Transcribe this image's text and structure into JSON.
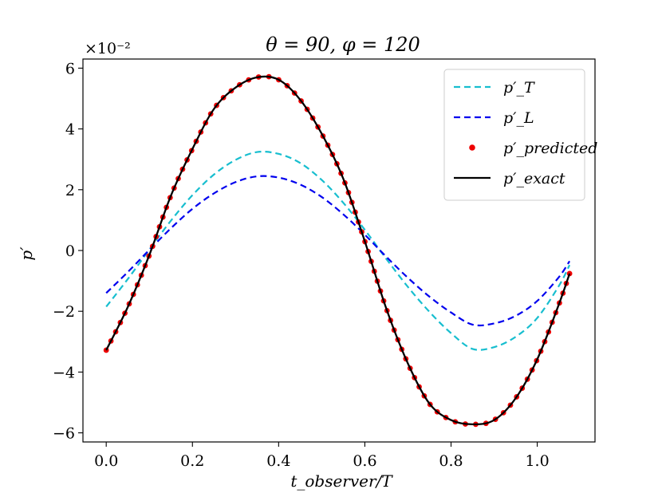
{
  "chart_data": {
    "type": "line",
    "title": "θ = 90, φ = 120",
    "xlabel": "t_observer/T",
    "ylabel": "p′",
    "xlim": [
      -0.054,
      1.134
    ],
    "ylim": [
      -6.3,
      6.3
    ],
    "y_scale_label": "×10⁻²",
    "x_ticks": [
      0.0,
      0.2,
      0.4,
      0.6,
      0.8,
      1.0
    ],
    "x_tick_labels": [
      "0.0",
      "0.2",
      "0.4",
      "0.6",
      "0.8",
      "1.0"
    ],
    "y_ticks": [
      -6,
      -4,
      -2,
      0,
      2,
      4,
      6
    ],
    "y_tick_labels": [
      "−6",
      "−4",
      "−2",
      "0",
      "2",
      "4",
      "6"
    ],
    "legend_position": "top-right",
    "series": [
      {
        "name": "p′_T",
        "legend_label": "p′_T",
        "style": "dashed",
        "color": "#17becf",
        "x": [
          0.0,
          0.05,
          0.1,
          0.15,
          0.2,
          0.25,
          0.3,
          0.35,
          0.4,
          0.45,
          0.5,
          0.55,
          0.6,
          0.65,
          0.7,
          0.75,
          0.8,
          0.85,
          0.9,
          0.95,
          1.0,
          1.05,
          1.075
        ],
        "values": [
          -1.85,
          -0.94,
          0.03,
          0.98,
          1.82,
          2.5,
          2.98,
          3.24,
          3.18,
          2.88,
          2.32,
          1.57,
          0.68,
          -0.28,
          -1.2,
          -2.02,
          -2.72,
          -3.24,
          -3.18,
          -2.84,
          -2.22,
          -1.17,
          -0.48
        ]
      },
      {
        "name": "p′_L",
        "legend_label": "p′_L",
        "style": "dashed",
        "color": "#0000ee",
        "x": [
          0.0,
          0.05,
          0.1,
          0.15,
          0.2,
          0.25,
          0.3,
          0.35,
          0.4,
          0.45,
          0.5,
          0.55,
          0.6,
          0.65,
          0.7,
          0.75,
          0.8,
          0.85,
          0.9,
          0.95,
          1.0,
          1.05,
          1.075
        ],
        "values": [
          -1.4,
          -0.71,
          0.02,
          0.73,
          1.37,
          1.88,
          2.25,
          2.44,
          2.4,
          2.17,
          1.76,
          1.19,
          0.52,
          -0.21,
          -0.9,
          -1.52,
          -2.04,
          -2.44,
          -2.4,
          -2.15,
          -1.66,
          -0.88,
          -0.35
        ]
      },
      {
        "name": "p′_predicted",
        "legend_label": "p′_predicted",
        "style": "dots",
        "color": "#ee0000",
        "x": [
          0.0,
          0.05,
          0.1,
          0.15,
          0.2,
          0.25,
          0.3,
          0.35,
          0.4,
          0.45,
          0.5,
          0.55,
          0.6,
          0.65,
          0.7,
          0.75,
          0.8,
          0.85,
          0.9,
          0.95,
          1.0,
          1.05,
          1.075
        ],
        "values": [
          -3.28,
          -1.86,
          -0.15,
          1.8,
          3.34,
          4.66,
          5.36,
          5.7,
          5.62,
          4.96,
          3.84,
          2.36,
          0.3,
          -1.92,
          -3.72,
          -5.04,
          -5.58,
          -5.72,
          -5.58,
          -4.86,
          -3.58,
          -1.78,
          -0.76
        ]
      },
      {
        "name": "p′_exact",
        "legend_label": "p′_exact",
        "style": "solid",
        "color": "#000000",
        "x": [
          0.0,
          0.05,
          0.1,
          0.15,
          0.2,
          0.25,
          0.3,
          0.35,
          0.4,
          0.45,
          0.5,
          0.55,
          0.6,
          0.65,
          0.7,
          0.75,
          0.8,
          0.85,
          0.9,
          0.95,
          1.0,
          1.05,
          1.075
        ],
        "values": [
          -3.28,
          -1.86,
          -0.15,
          1.8,
          3.34,
          4.66,
          5.36,
          5.7,
          5.62,
          4.96,
          3.84,
          2.36,
          0.3,
          -1.92,
          -3.72,
          -5.04,
          -5.58,
          -5.72,
          -5.58,
          -4.86,
          -3.58,
          -1.78,
          -0.76
        ]
      }
    ]
  }
}
